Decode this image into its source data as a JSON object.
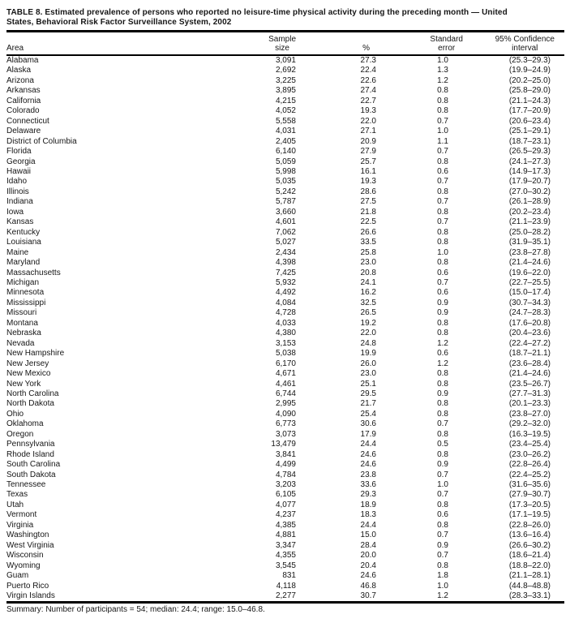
{
  "document": {
    "title_line1": "TABLE 8. Estimated prevalence of persons who reported no leisure-time physical activity during the preceding month — United",
    "title_line2": "States, Behavioral Risk Factor Surveillance System, 2002",
    "summary": "Summary: Number of participants = 54; median: 24.4; range: 15.0–46.8."
  },
  "table": {
    "headers": {
      "area": "Area",
      "sample_line1": "Sample",
      "sample_line2": "size",
      "percent": "%",
      "se_line1": "Standard",
      "se_line2": "error",
      "ci_line1": "95% Confidence",
      "ci_line2": "interval"
    },
    "column_keys": [
      "area",
      "sample-size",
      "percent",
      "standard-error",
      "confidence-interval"
    ],
    "rows": [
      [
        "Alabama",
        "3,091",
        "27.3",
        "1.0",
        "(25.3–29.3)"
      ],
      [
        "Alaska",
        "2,692",
        "22.4",
        "1.3",
        "(19.9–24.9)"
      ],
      [
        "Arizona",
        "3,225",
        "22.6",
        "1.2",
        "(20.2–25.0)"
      ],
      [
        "Arkansas",
        "3,895",
        "27.4",
        "0.8",
        "(25.8–29.0)"
      ],
      [
        "California",
        "4,215",
        "22.7",
        "0.8",
        "(21.1–24.3)"
      ],
      [
        "Colorado",
        "4,052",
        "19.3",
        "0.8",
        "(17.7–20.9)"
      ],
      [
        "Connecticut",
        "5,558",
        "22.0",
        "0.7",
        "(20.6–23.4)"
      ],
      [
        "Delaware",
        "4,031",
        "27.1",
        "1.0",
        "(25.1–29.1)"
      ],
      [
        "District of Columbia",
        "2,405",
        "20.9",
        "1.1",
        "(18.7–23.1)"
      ],
      [
        "Florida",
        "6,140",
        "27.9",
        "0.7",
        "(26.5–29.3)"
      ],
      [
        "Georgia",
        "5,059",
        "25.7",
        "0.8",
        "(24.1–27.3)"
      ],
      [
        "Hawaii",
        "5,998",
        "16.1",
        "0.6",
        "(14.9–17.3)"
      ],
      [
        "Idaho",
        "5,035",
        "19.3",
        "0.7",
        "(17.9–20.7)"
      ],
      [
        "Illinois",
        "5,242",
        "28.6",
        "0.8",
        "(27.0–30.2)"
      ],
      [
        "Indiana",
        "5,787",
        "27.5",
        "0.7",
        "(26.1–28.9)"
      ],
      [
        "Iowa",
        "3,660",
        "21.8",
        "0.8",
        "(20.2–23.4)"
      ],
      [
        "Kansas",
        "4,601",
        "22.5",
        "0.7",
        "(21.1–23.9)"
      ],
      [
        "Kentucky",
        "7,062",
        "26.6",
        "0.8",
        "(25.0–28.2)"
      ],
      [
        "Louisiana",
        "5,027",
        "33.5",
        "0.8",
        "(31.9–35.1)"
      ],
      [
        "Maine",
        "2,434",
        "25.8",
        "1.0",
        "(23.8–27.8)"
      ],
      [
        "Maryland",
        "4,398",
        "23.0",
        "0.8",
        "(21.4–24.6)"
      ],
      [
        "Massachusetts",
        "7,425",
        "20.8",
        "0.6",
        "(19.6–22.0)"
      ],
      [
        "Michigan",
        "5,932",
        "24.1",
        "0.7",
        "(22.7–25.5)"
      ],
      [
        "Minnesota",
        "4,492",
        "16.2",
        "0.6",
        "(15.0–17.4)"
      ],
      [
        "Mississippi",
        "4,084",
        "32.5",
        "0.9",
        "(30.7–34.3)"
      ],
      [
        "Missouri",
        "4,728",
        "26.5",
        "0.9",
        "(24.7–28.3)"
      ],
      [
        "Montana",
        "4,033",
        "19.2",
        "0.8",
        "(17.6–20.8)"
      ],
      [
        "Nebraska",
        "4,380",
        "22.0",
        "0.8",
        "(20.4–23.6)"
      ],
      [
        "Nevada",
        "3,153",
        "24.8",
        "1.2",
        "(22.4–27.2)"
      ],
      [
        "New Hampshire",
        "5,038",
        "19.9",
        "0.6",
        "(18.7–21.1)"
      ],
      [
        "New Jersey",
        "6,170",
        "26.0",
        "1.2",
        "(23.6–28.4)"
      ],
      [
        "New Mexico",
        "4,671",
        "23.0",
        "0.8",
        "(21.4–24.6)"
      ],
      [
        "New York",
        "4,461",
        "25.1",
        "0.8",
        "(23.5–26.7)"
      ],
      [
        "North Carolina",
        "6,744",
        "29.5",
        "0.9",
        "(27.7–31.3)"
      ],
      [
        "North Dakota",
        "2,995",
        "21.7",
        "0.8",
        "(20.1–23.3)"
      ],
      [
        "Ohio",
        "4,090",
        "25.4",
        "0.8",
        "(23.8–27.0)"
      ],
      [
        "Oklahoma",
        "6,773",
        "30.6",
        "0.7",
        "(29.2–32.0)"
      ],
      [
        "Oregon",
        "3,073",
        "17.9",
        "0.8",
        "(16.3–19.5)"
      ],
      [
        "Pennsylvania",
        "13,479",
        "24.4",
        "0.5",
        "(23.4–25.4)"
      ],
      [
        "Rhode Island",
        "3,841",
        "24.6",
        "0.8",
        "(23.0–26.2)"
      ],
      [
        "South Carolina",
        "4,499",
        "24.6",
        "0.9",
        "(22.8–26.4)"
      ],
      [
        "South Dakota",
        "4,784",
        "23.8",
        "0.7",
        "(22.4–25.2)"
      ],
      [
        "Tennessee",
        "3,203",
        "33.6",
        "1.0",
        "(31.6–35.6)"
      ],
      [
        "Texas",
        "6,105",
        "29.3",
        "0.7",
        "(27.9–30.7)"
      ],
      [
        "Utah",
        "4,077",
        "18.9",
        "0.8",
        "(17.3–20.5)"
      ],
      [
        "Vermont",
        "4,237",
        "18.3",
        "0.6",
        "(17.1–19.5)"
      ],
      [
        "Virginia",
        "4,385",
        "24.4",
        "0.8",
        "(22.8–26.0)"
      ],
      [
        "Washington",
        "4,881",
        "15.0",
        "0.7",
        "(13.6–16.4)"
      ],
      [
        "West Virginia",
        "3,347",
        "28.4",
        "0.9",
        "(26.6–30.2)"
      ],
      [
        "Wisconsin",
        "4,355",
        "20.0",
        "0.7",
        "(18.6–21.4)"
      ],
      [
        "Wyoming",
        "3,545",
        "20.4",
        "0.8",
        "(18.8–22.0)"
      ],
      [
        "Guam",
        "831",
        "24.6",
        "1.8",
        "(21.1–28.1)"
      ],
      [
        "Puerto Rico",
        "4,118",
        "46.8",
        "1.0",
        "(44.8–48.8)"
      ],
      [
        "Virgin Islands",
        "2,277",
        "30.7",
        "1.2",
        "(28.3–33.1)"
      ]
    ]
  }
}
